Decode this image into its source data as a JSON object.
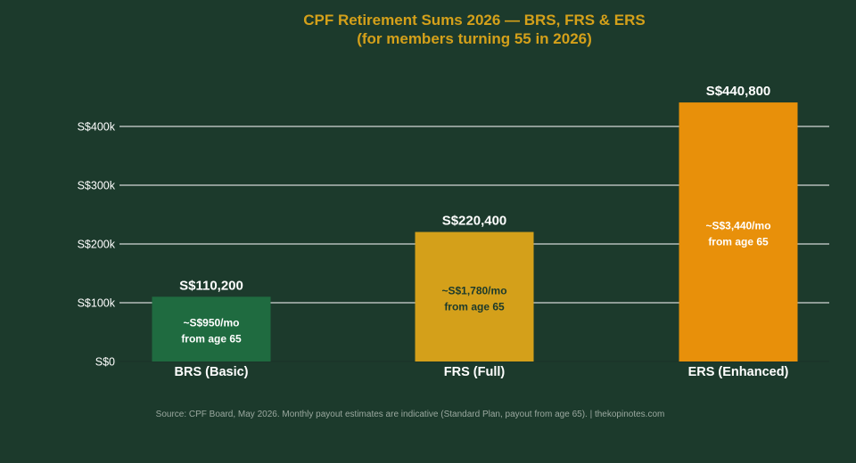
{
  "chart_data": {
    "type": "bar",
    "title": "CPF Retirement Sums 2026 — BRS, FRS & ERS",
    "subtitle": "(for members turning 55 in 2026)",
    "categories": [
      "BRS (Basic)",
      "FRS (Full)",
      "ERS (Enhanced)"
    ],
    "values": [
      110200,
      220400,
      440800
    ],
    "value_labels": [
      "S$110,200",
      "S$220,400",
      "S$440,800"
    ],
    "inner_labels": [
      [
        "~S$950/mo",
        "from age 65"
      ],
      [
        "~S$1,780/mo",
        "from age 65"
      ],
      [
        "~S$3,440/mo",
        "from age 65"
      ]
    ],
    "bar_colors": [
      "#1f6b40",
      "#d4a01a",
      "#e8900a"
    ],
    "inner_label_colors": [
      "#ffffff",
      "#1c3a2c",
      "#ffffff"
    ],
    "y_ticks": [
      0,
      100000,
      200000,
      300000,
      400000
    ],
    "y_tick_labels": [
      "S$0",
      "S$100k",
      "S$200k",
      "S$300k",
      "S$400k"
    ],
    "ylim": [
      0,
      460000
    ],
    "grid": true,
    "xlabel": "",
    "ylabel": ""
  },
  "source": "Source: CPF Board, May 2026. Monthly payout estimates are indicative (Standard Plan, payout from age 65).  |  thekopinotes.com",
  "colors": {
    "background": "#1c3a2c",
    "title": "#d4a01a",
    "text": "#ffffff",
    "grid": "#ffffff",
    "source": "#9aa89f"
  }
}
